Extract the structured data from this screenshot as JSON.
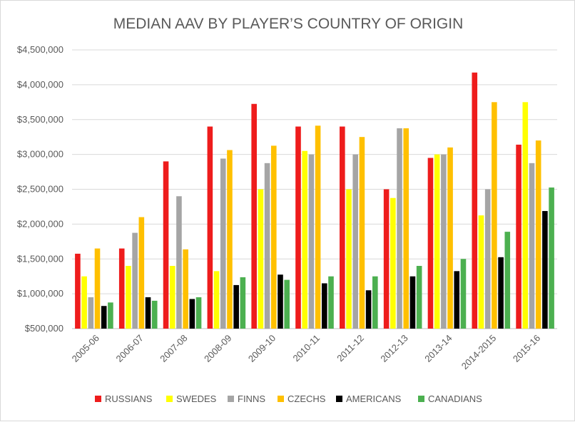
{
  "chart_data": {
    "type": "bar",
    "title": "MEDIAN AAV BY PLAYER’S COUNTRY OF ORIGIN",
    "xlabel": "",
    "ylabel": "",
    "ylim": [
      500000,
      4500000
    ],
    "ytick_values": [
      500000,
      1000000,
      1500000,
      2000000,
      2500000,
      3000000,
      3500000,
      4000000,
      4500000
    ],
    "ytick_labels": [
      "$500,000",
      "$1,000,000",
      "$1,500,000",
      "$2,000,000",
      "$2,500,000",
      "$3,000,000",
      "$3,500,000",
      "$4,000,000",
      "$4,500,000"
    ],
    "grid": true,
    "legend_position": "bottom",
    "categories": [
      "2005-06",
      "2006-07",
      "2007-08",
      "2008-09",
      "2009-10",
      "2010-11",
      "2011-12",
      "2012-13",
      "2013-14",
      "2014-2015",
      "2015-16"
    ],
    "series": [
      {
        "name": "RUSSIANS",
        "color": "#ee1c1c",
        "values": [
          1575000,
          1650000,
          2900000,
          3400000,
          3725000,
          3400000,
          3400000,
          2500000,
          2950000,
          4175000,
          3140000
        ]
      },
      {
        "name": "SWEDES",
        "color": "#ffff00",
        "values": [
          1250000,
          1400000,
          1400000,
          1325000,
          2500000,
          3050000,
          2500000,
          2375000,
          3000000,
          2125000,
          3750000
        ]
      },
      {
        "name": "FINNS",
        "color": "#a5a5a5",
        "values": [
          950000,
          1875000,
          2400000,
          2940000,
          2875000,
          3000000,
          3000000,
          3375000,
          3000000,
          2500000,
          2875000
        ]
      },
      {
        "name": "CZECHS",
        "color": "#ffc000",
        "values": [
          1650000,
          2100000,
          1637500,
          3062500,
          3125000,
          3412500,
          3250000,
          3375000,
          3100000,
          3750000,
          3200000
        ]
      },
      {
        "name": "AMERICANS",
        "color": "#000000",
        "values": [
          825000,
          950000,
          925000,
          1125000,
          1275000,
          1150000,
          1050000,
          1250000,
          1325000,
          1525000,
          2187500
        ]
      },
      {
        "name": "CANADIANS",
        "color": "#4cb050",
        "values": [
          875000,
          900000,
          950000,
          1237500,
          1200000,
          1250000,
          1250000,
          1400000,
          1500000,
          1890000,
          2525000
        ]
      }
    ]
  }
}
